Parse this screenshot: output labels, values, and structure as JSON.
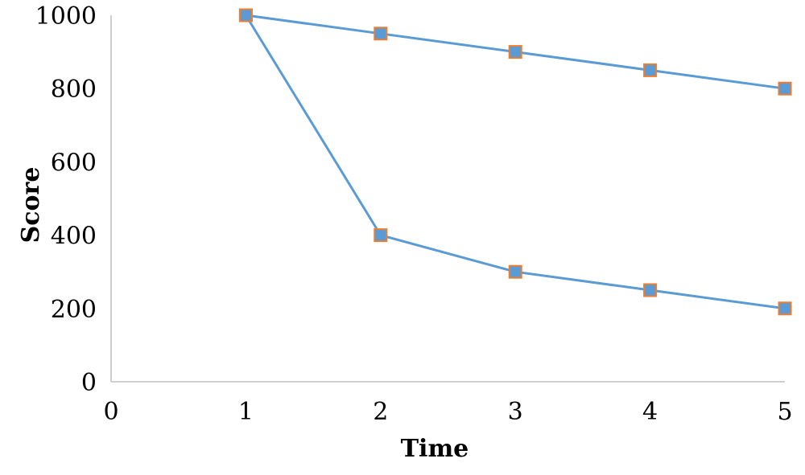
{
  "chart_data": {
    "type": "line",
    "xlabel": "Time",
    "ylabel": "Score",
    "xlim": [
      0,
      5
    ],
    "ylim": [
      0,
      1000
    ],
    "x_ticks": [
      0,
      1,
      2,
      3,
      4,
      5
    ],
    "y_ticks": [
      0,
      200,
      400,
      600,
      800,
      1000
    ],
    "grid": false,
    "legend": "none",
    "line_color": "#5b9bd5",
    "marker_fill": "#5b9bd5",
    "marker_edge": "#ed7d31",
    "series": [
      {
        "x": [
          1,
          2,
          3,
          4,
          5
        ],
        "values": [
          1000,
          950,
          900,
          850,
          800
        ]
      },
      {
        "x": [
          1,
          2,
          3,
          4,
          5
        ],
        "values": [
          1000,
          400,
          300,
          250,
          200
        ]
      }
    ]
  }
}
